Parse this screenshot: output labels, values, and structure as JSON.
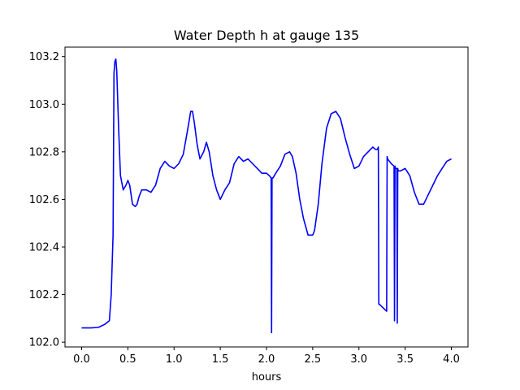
{
  "chart_data": {
    "type": "line",
    "title": "Water Depth h at gauge 135",
    "xlabel": "hours",
    "ylabel": "",
    "xlim": [
      -0.18,
      4.18
    ],
    "ylim": [
      101.98,
      103.24
    ],
    "xticks": [
      0.0,
      0.5,
      1.0,
      1.5,
      2.0,
      2.5,
      3.0,
      3.5,
      4.0
    ],
    "xtick_labels": [
      "0.0",
      "0.5",
      "1.0",
      "1.5",
      "2.0",
      "2.5",
      "3.0",
      "3.5",
      "4.0"
    ],
    "yticks": [
      102.0,
      102.2,
      102.4,
      102.6,
      102.8,
      103.0,
      103.2
    ],
    "ytick_labels": [
      "102.0",
      "102.2",
      "102.4",
      "102.6",
      "102.8",
      "103.0",
      "103.2"
    ],
    "grid": false,
    "series": [
      {
        "color": "#0000ff",
        "x": [
          0.0,
          0.1,
          0.18,
          0.25,
          0.3,
          0.32,
          0.34,
          0.35,
          0.36,
          0.37,
          0.38,
          0.4,
          0.42,
          0.45,
          0.48,
          0.5,
          0.52,
          0.55,
          0.58,
          0.6,
          0.62,
          0.65,
          0.7,
          0.75,
          0.8,
          0.85,
          0.9,
          0.95,
          1.0,
          1.05,
          1.1,
          1.15,
          1.18,
          1.2,
          1.22,
          1.25,
          1.28,
          1.32,
          1.35,
          1.38,
          1.42,
          1.46,
          1.5,
          1.55,
          1.6,
          1.65,
          1.7,
          1.75,
          1.8,
          1.85,
          1.9,
          1.95,
          2.0,
          2.03,
          2.05,
          2.055,
          2.06,
          2.07,
          2.1,
          2.15,
          2.2,
          2.25,
          2.28,
          2.32,
          2.36,
          2.4,
          2.45,
          2.5,
          2.52,
          2.56,
          2.6,
          2.65,
          2.7,
          2.75,
          2.8,
          2.85,
          2.9,
          2.95,
          3.0,
          3.05,
          3.1,
          3.15,
          3.18,
          3.2,
          3.21,
          3.215,
          3.22,
          3.3,
          3.305,
          3.31,
          3.35,
          3.38,
          3.385,
          3.39,
          3.395,
          3.4,
          3.41,
          3.415,
          3.42,
          3.425,
          3.43,
          3.45,
          3.5,
          3.55,
          3.6,
          3.65,
          3.7,
          3.75,
          3.8,
          3.85,
          3.9,
          3.95,
          4.0
        ],
        "y": [
          102.06,
          102.06,
          102.062,
          102.075,
          102.09,
          102.2,
          102.45,
          103.13,
          103.18,
          103.19,
          103.14,
          102.9,
          102.7,
          102.64,
          102.66,
          102.68,
          102.66,
          102.58,
          102.57,
          102.58,
          102.61,
          102.64,
          102.64,
          102.63,
          102.66,
          102.73,
          102.76,
          102.74,
          102.73,
          102.75,
          102.79,
          102.9,
          102.97,
          102.97,
          102.92,
          102.83,
          102.77,
          102.8,
          102.84,
          102.8,
          102.7,
          102.64,
          102.6,
          102.64,
          102.67,
          102.75,
          102.78,
          102.76,
          102.77,
          102.75,
          102.73,
          102.71,
          102.71,
          102.7,
          102.69,
          102.04,
          102.69,
          102.69,
          102.71,
          102.74,
          102.79,
          102.8,
          102.78,
          102.71,
          102.6,
          102.52,
          102.45,
          102.45,
          102.47,
          102.58,
          102.75,
          102.9,
          102.96,
          102.97,
          102.94,
          102.86,
          102.79,
          102.73,
          102.74,
          102.78,
          102.8,
          102.82,
          102.81,
          102.81,
          102.82,
          102.16,
          102.16,
          102.13,
          102.78,
          102.77,
          102.75,
          102.74,
          102.09,
          102.74,
          102.73,
          102.73,
          102.73,
          102.08,
          102.73,
          102.72,
          102.72,
          102.72,
          102.73,
          102.7,
          102.63,
          102.58,
          102.58,
          102.62,
          102.66,
          102.7,
          102.73,
          102.76,
          102.77
        ]
      }
    ]
  }
}
